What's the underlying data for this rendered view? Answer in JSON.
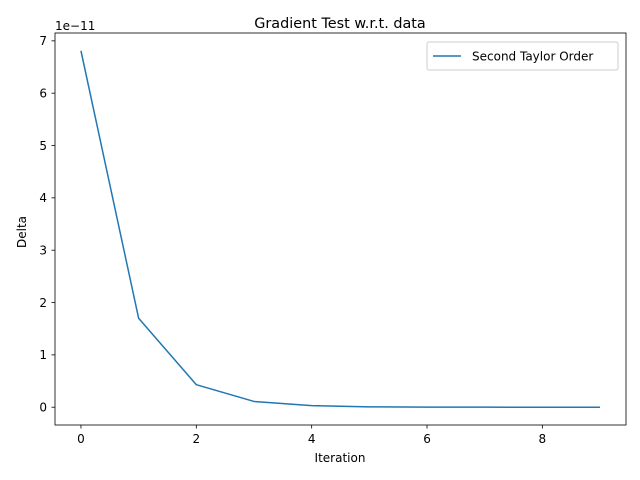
{
  "chart_data": {
    "type": "line",
    "title": "Gradient Test w.r.t. data",
    "xlabel": "Iteration",
    "ylabel": "Delta",
    "y_offset_label": "1e−11",
    "xlim": [
      -0.45,
      9.45
    ],
    "ylim": [
      -0.34,
      7.15
    ],
    "xticks": [
      0,
      2,
      4,
      6,
      8
    ],
    "yticks": [
      0,
      1,
      2,
      3,
      4,
      5,
      6,
      7
    ],
    "grid": false,
    "legend_position": "top-right",
    "series": [
      {
        "name": "Second Taylor Order",
        "color": "#1f77b4",
        "x": [
          0,
          1,
          2,
          3,
          4,
          5,
          6,
          7,
          8,
          9
        ],
        "y": [
          6.81,
          1.7,
          0.43,
          0.11,
          0.03,
          0.007,
          0.002,
          0.0005,
          0.0001,
          0.0
        ]
      }
    ]
  }
}
